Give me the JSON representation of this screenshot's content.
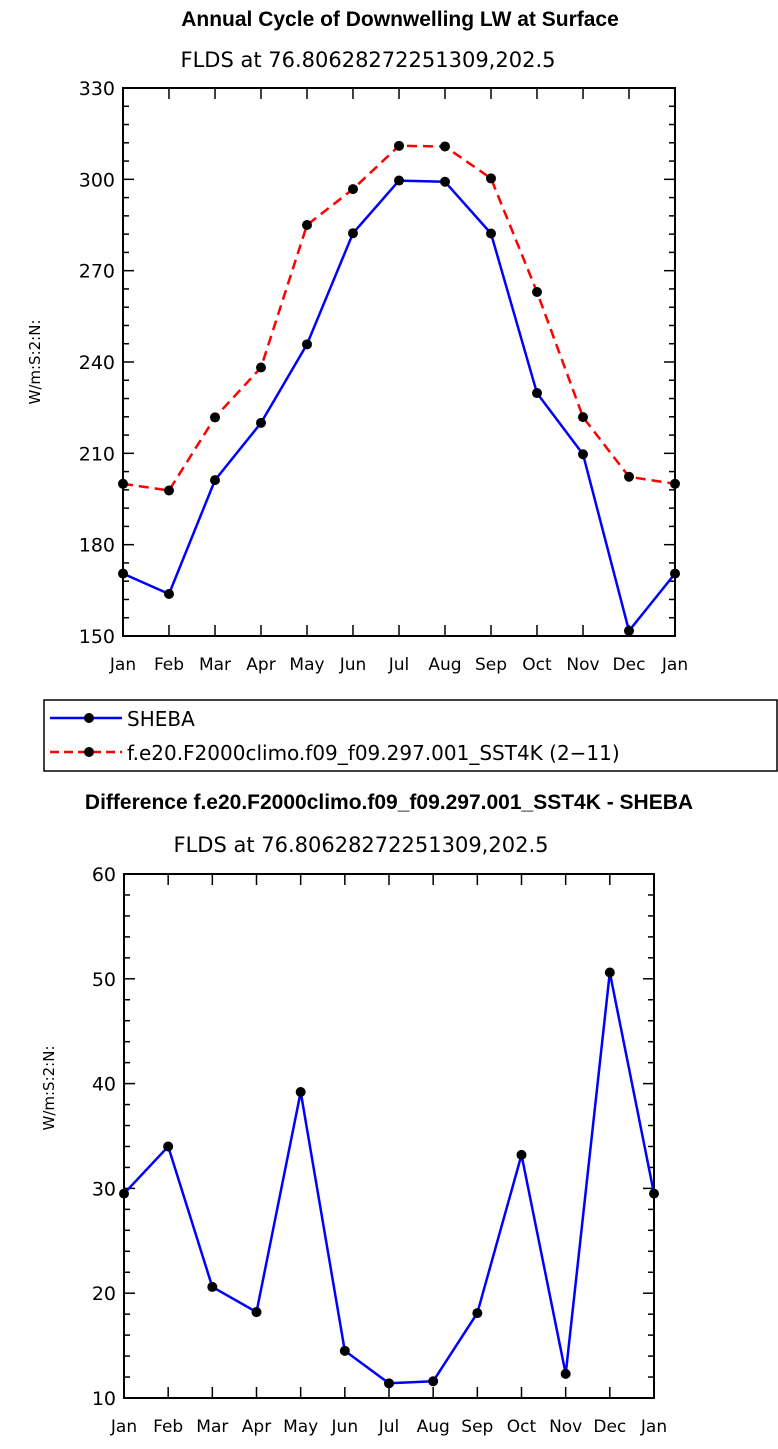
{
  "chart_data": [
    {
      "type": "line",
      "title": "Annual Cycle of Downwelling LW at Surface",
      "subtitle": "FLDS at 76.80628272251309,202.5",
      "xlabel": "",
      "ylabel": "W/m:S:2:N:",
      "categories": [
        "Jan",
        "Feb",
        "Mar",
        "Apr",
        "May",
        "Jun",
        "Jul",
        "Aug",
        "Sep",
        "Oct",
        "Nov",
        "Dec",
        "Jan"
      ],
      "ylim": [
        150,
        330
      ],
      "yticks": [
        "150",
        "180",
        "210",
        "240",
        "270",
        "300",
        "330"
      ],
      "series": [
        {
          "name": "SHEBA",
          "color": "#0000ff",
          "style": "solid",
          "values": [
            170.5,
            163.8,
            201.2,
            220.0,
            245.8,
            282.3,
            299.6,
            299.2,
            282.2,
            229.8,
            209.7,
            151.7,
            170.5
          ]
        },
        {
          "name": "f.e20.F2000climo.f09_f09.297.001_SST4K (2−11)",
          "color": "#ff0000",
          "style": "dashed",
          "values": [
            200.0,
            197.8,
            221.8,
            238.2,
            285.0,
            296.8,
            311.0,
            310.8,
            300.3,
            263.0,
            221.9,
            202.3,
            200.0
          ]
        }
      ]
    },
    {
      "type": "line",
      "title": "Difference f.e20.F2000climo.f09_f09.297.001_SST4K - SHEBA",
      "subtitle": "FLDS at 76.80628272251309,202.5",
      "xlabel": "",
      "ylabel": "W/m:S:2:N:",
      "categories": [
        "Jan",
        "Feb",
        "Mar",
        "Apr",
        "May",
        "Jun",
        "Jul",
        "Aug",
        "Sep",
        "Oct",
        "Nov",
        "Dec",
        "Jan"
      ],
      "ylim": [
        10,
        60
      ],
      "yticks": [
        "10",
        "20",
        "30",
        "40",
        "50",
        "60"
      ],
      "series": [
        {
          "name": "Difference",
          "color": "#0000ff",
          "style": "solid",
          "values": [
            29.5,
            34.0,
            20.6,
            18.2,
            39.2,
            14.5,
            11.4,
            11.6,
            18.1,
            33.2,
            12.3,
            50.6,
            29.5
          ]
        }
      ]
    }
  ]
}
